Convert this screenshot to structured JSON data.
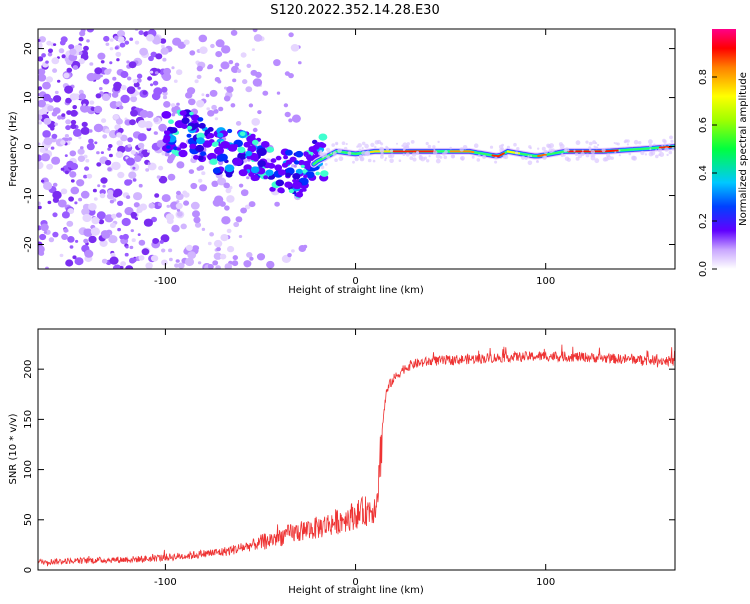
{
  "title": "S120.2022.352.14.28.E30",
  "chart_data": [
    {
      "type": "heatmap",
      "xlabel": "Height of straight line (km)",
      "ylabel": "Frequency (Hz)",
      "xlim": [
        -167,
        168
      ],
      "ylim": [
        -25,
        24
      ],
      "xticks": [
        -100,
        0,
        100
      ],
      "yticks": [
        -20,
        -10,
        0,
        10,
        20
      ],
      "colorbar": {
        "label": "Normalized spectral amplitude",
        "range": [
          0,
          1
        ],
        "ticks": [
          "0.0",
          "0.2",
          "0.4",
          "0.6",
          "0.8"
        ],
        "colormap": "rainbow-with-white-base"
      },
      "ridge": [
        {
          "x": -100,
          "y": 3.5
        },
        {
          "x": -90,
          "y": 3.0
        },
        {
          "x": -80,
          "y": 1.5
        },
        {
          "x": -70,
          "y": -1.5
        },
        {
          "x": -60,
          "y": -1.0
        },
        {
          "x": -50,
          "y": -3.0
        },
        {
          "x": -40,
          "y": -5.0
        },
        {
          "x": -30,
          "y": -6.0
        },
        {
          "x": -20,
          "y": -3.0
        },
        {
          "x": -10,
          "y": -1.0
        },
        {
          "x": 0,
          "y": -1.5
        },
        {
          "x": 10,
          "y": -1.0
        },
        {
          "x": 20,
          "y": -1.0
        },
        {
          "x": 40,
          "y": -1.0
        },
        {
          "x": 60,
          "y": -1.0
        },
        {
          "x": 75,
          "y": -2.0
        },
        {
          "x": 80,
          "y": -1.0
        },
        {
          "x": 95,
          "y": -2.0
        },
        {
          "x": 110,
          "y": -1.0
        },
        {
          "x": 130,
          "y": -1.0
        },
        {
          "x": 150,
          "y": -0.5
        },
        {
          "x": 168,
          "y": 0.0
        }
      ]
    },
    {
      "type": "line",
      "xlabel": "Height of straight line (km)",
      "ylabel": "SNR (10 * v/v)",
      "xlim": [
        -167,
        168
      ],
      "ylim": [
        0,
        240
      ],
      "xticks": [
        -100,
        0,
        100
      ],
      "yticks": [
        0,
        50,
        100,
        150,
        200
      ],
      "color": "#ee3333",
      "series": [
        {
          "x": [
            -167,
            -150,
            -130,
            -110,
            -90,
            -70,
            -60,
            -50,
            -40,
            -30,
            -20,
            -10,
            0,
            10,
            12,
            14,
            16,
            18,
            20,
            25,
            30,
            40,
            60,
            80,
            100,
            120,
            140,
            168
          ],
          "y": [
            8,
            9,
            10,
            11,
            14,
            18,
            22,
            27,
            33,
            38,
            42,
            48,
            55,
            62,
            85,
            140,
            175,
            185,
            190,
            200,
            205,
            208,
            210,
            212,
            213,
            212,
            210,
            208
          ]
        }
      ]
    }
  ]
}
